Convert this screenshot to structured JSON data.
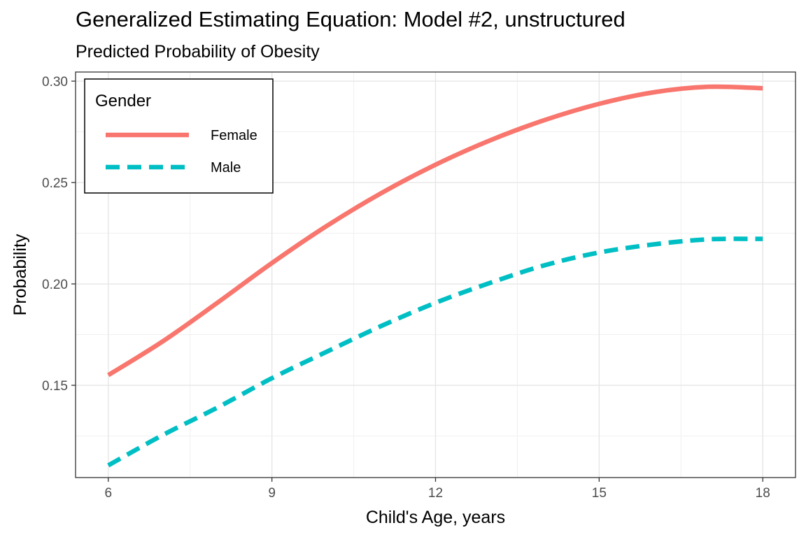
{
  "chart_data": {
    "type": "line",
    "title": "Generalized Estimating Equation: Model #2, unstructured",
    "subtitle": "Predicted Probability of Obesity",
    "xlabel": "Child's Age, years",
    "ylabel": "Probability",
    "xlim": [
      5.4,
      18.6
    ],
    "ylim": [
      0.1045,
      0.3045
    ],
    "x_ticks": [
      6,
      9,
      12,
      15,
      18
    ],
    "y_ticks": [
      0.15,
      0.2,
      0.25,
      0.3
    ],
    "x_tick_labels": [
      "6",
      "9",
      "12",
      "15",
      "18"
    ],
    "y_tick_labels": [
      "0.15",
      "0.20",
      "0.25",
      "0.30"
    ],
    "grid": true,
    "legend": {
      "title": "Gender",
      "placement": "top-left",
      "entries": [
        "Female",
        "Male"
      ]
    },
    "series": [
      {
        "name": "Female",
        "color": "#F8766D",
        "line_style": "solid",
        "x": [
          6,
          7,
          8,
          9,
          10,
          11,
          12,
          13,
          14,
          15,
          16,
          17,
          18
        ],
        "y": [
          0.155,
          0.1717,
          0.1907,
          0.2103,
          0.2285,
          0.2447,
          0.2588,
          0.2708,
          0.2808,
          0.2888,
          0.2945,
          0.2972,
          0.2965
        ]
      },
      {
        "name": "Male",
        "color": "#00BFC4",
        "line_style": "dashed",
        "x": [
          6,
          7,
          8,
          9,
          10,
          11,
          12,
          13,
          14,
          15,
          16,
          17,
          18
        ],
        "y": [
          0.1105,
          0.1255,
          0.139,
          0.1535,
          0.1665,
          0.1792,
          0.1907,
          0.2005,
          0.2092,
          0.2155,
          0.2195,
          0.222,
          0.2222
        ]
      }
    ]
  }
}
